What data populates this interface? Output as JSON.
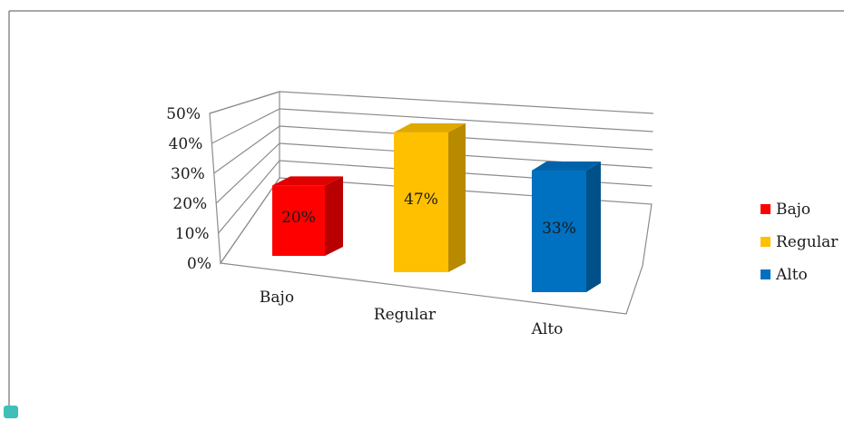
{
  "chart_data": {
    "type": "bar",
    "categories": [
      "Bajo",
      "Regular",
      "Alto"
    ],
    "values": [
      20,
      47,
      33
    ],
    "value_labels": [
      "20%",
      "47%",
      "33%"
    ],
    "colors": [
      "#ff0000",
      "#ffc000",
      "#0070c0"
    ],
    "yticks": [
      "0%",
      "10%",
      "20%",
      "30%",
      "40%",
      "50%"
    ],
    "ylim": [
      0,
      50
    ],
    "legend": [
      "Bajo",
      "Regular",
      "Alto"
    ],
    "legend_position": "right",
    "grid": true,
    "three_d": true
  }
}
